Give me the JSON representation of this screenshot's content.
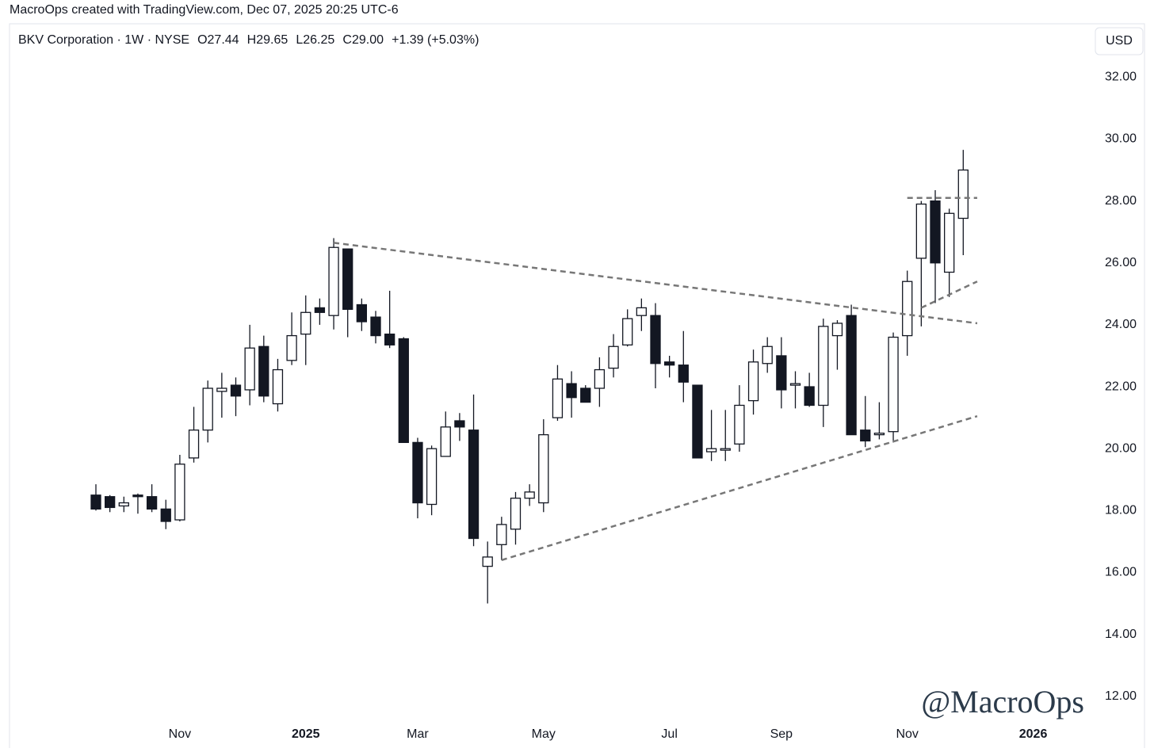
{
  "header": {
    "credit": "MacroOps created with TradingView.com, Dec 07, 2025 20:25 UTC-6"
  },
  "chart_data": {
    "type": "candlestick",
    "title": "BKV Corporation · 1W · NYSE",
    "ohlc_labels": [
      "O27.44",
      "H29.65",
      "L26.25",
      "C29.00",
      "+1.39 (+5.03%)"
    ],
    "currency": "USD",
    "watermark": "@MacroOps",
    "categories": [
      null,
      null,
      null,
      null,
      null,
      null,
      "Nov",
      null,
      null,
      null,
      null,
      null,
      null,
      null,
      null,
      "2025",
      null,
      null,
      null,
      null,
      null,
      null,
      null,
      "Mar",
      null,
      null,
      null,
      null,
      null,
      null,
      null,
      null,
      "May",
      null,
      null,
      null,
      null,
      null,
      null,
      null,
      null,
      "Jul",
      null,
      null,
      null,
      null,
      null,
      null,
      null,
      "Sep",
      null,
      null,
      null,
      null,
      null,
      null,
      null,
      null,
      "Nov",
      null,
      null,
      null,
      null,
      null,
      null,
      null,
      null,
      "2026",
      null,
      null
    ],
    "bold_categories": [
      "2025",
      "2026"
    ],
    "open": [
      18.5,
      18.45,
      18.15,
      18.5,
      18.45,
      18.05,
      17.7,
      19.7,
      20.6,
      21.85,
      22.05,
      21.9,
      23.3,
      21.45,
      22.85,
      23.7,
      24.55,
      24.3,
      26.45,
      24.65,
      24.25,
      23.7,
      23.55,
      20.2,
      18.2,
      19.75,
      20.9,
      20.6,
      16.2,
      16.9,
      17.4,
      18.4,
      18.25,
      21.0,
      22.1,
      21.95,
      21.95,
      22.6,
      23.35,
      24.3,
      24.3,
      22.8,
      22.7,
      22.05,
      19.9,
      19.95,
      20.15,
      21.55,
      22.75,
      23.0,
      22.05,
      22.0,
      21.4,
      23.65,
      24.3,
      20.6,
      20.45,
      20.55,
      23.65,
      26.15,
      28.0,
      25.7,
      27.44,
      null,
      null,
      null,
      null,
      null,
      null,
      null
    ],
    "high": [
      18.85,
      18.5,
      18.45,
      18.55,
      18.85,
      18.35,
      19.8,
      21.35,
      22.2,
      22.45,
      22.3,
      24.0,
      23.65,
      22.9,
      24.4,
      24.95,
      24.85,
      26.8,
      26.45,
      24.85,
      24.45,
      25.1,
      23.6,
      20.35,
      20.1,
      21.2,
      21.15,
      21.75,
      17.0,
      17.8,
      18.6,
      18.85,
      20.95,
      22.7,
      22.5,
      22.05,
      22.95,
      23.7,
      24.5,
      24.85,
      24.7,
      23.0,
      23.8,
      22.05,
      21.25,
      21.25,
      22.05,
      23.2,
      23.6,
      23.6,
      22.5,
      22.45,
      24.2,
      24.15,
      24.65,
      21.7,
      21.5,
      23.75,
      25.75,
      28.0,
      28.35,
      27.75,
      29.65,
      null,
      null,
      null,
      null,
      null,
      null,
      null
    ],
    "low": [
      18.0,
      17.95,
      17.95,
      17.9,
      17.95,
      17.4,
      17.65,
      19.55,
      20.2,
      21.0,
      21.05,
      21.4,
      21.5,
      21.2,
      22.7,
      22.7,
      24.0,
      23.85,
      23.6,
      23.8,
      23.4,
      23.25,
      20.2,
      17.75,
      17.85,
      19.75,
      20.25,
      16.85,
      15.0,
      16.4,
      16.9,
      18.15,
      17.95,
      20.9,
      21.0,
      21.5,
      21.35,
      22.3,
      23.3,
      23.8,
      21.95,
      22.3,
      21.5,
      19.7,
      19.6,
      19.6,
      19.9,
      21.1,
      22.45,
      21.3,
      21.3,
      21.35,
      20.7,
      22.55,
      20.45,
      20.05,
      20.3,
      20.2,
      23.0,
      23.95,
      24.7,
      24.9,
      26.25,
      null,
      null,
      null,
      null,
      null,
      null,
      null
    ],
    "close": [
      18.05,
      18.1,
      18.25,
      18.45,
      18.05,
      17.65,
      19.5,
      20.6,
      21.95,
      21.95,
      21.7,
      23.25,
      21.7,
      22.55,
      23.65,
      24.4,
      24.4,
      26.5,
      24.5,
      24.1,
      23.65,
      23.35,
      20.2,
      18.25,
      20.0,
      20.7,
      20.7,
      17.1,
      16.5,
      17.55,
      18.4,
      18.6,
      20.45,
      22.25,
      21.65,
      21.5,
      22.55,
      23.3,
      24.2,
      24.55,
      22.75,
      22.7,
      22.15,
      19.7,
      20.0,
      20.0,
      21.4,
      22.8,
      23.3,
      21.9,
      22.1,
      21.4,
      23.95,
      24.05,
      20.45,
      20.25,
      20.5,
      23.6,
      25.4,
      27.9,
      26.0,
      27.6,
      29.0,
      null,
      null,
      null,
      null,
      null,
      null,
      null
    ],
    "trendlines": [
      {
        "x": [
          17,
          63
        ],
        "y": [
          26.65,
          24.05
        ]
      },
      {
        "x": [
          29,
          63
        ],
        "y": [
          16.4,
          21.05
        ]
      },
      {
        "x": [
          59,
          63
        ],
        "y": [
          24.55,
          25.4
        ]
      },
      {
        "x": [
          58,
          63
        ],
        "y": [
          28.1,
          28.1
        ]
      }
    ],
    "up_color": "#ffffff",
    "down_color": "#131722",
    "line_color": "#777777",
    "ylim": [
      11.2,
      32.7
    ],
    "yticks": [
      {
        "value": 12,
        "label": "12.00"
      },
      {
        "value": 14,
        "label": "14.00"
      },
      {
        "value": 16,
        "label": "16.00"
      },
      {
        "value": 18,
        "label": "18.00"
      },
      {
        "value": 20,
        "label": "20.00"
      },
      {
        "value": 22,
        "label": "22.00"
      },
      {
        "value": 24,
        "label": "24.00"
      },
      {
        "value": 26,
        "label": "26.00"
      },
      {
        "value": 28,
        "label": "28.00"
      },
      {
        "value": 30,
        "label": "30.00"
      },
      {
        "value": 32,
        "label": "32.00"
      }
    ]
  }
}
